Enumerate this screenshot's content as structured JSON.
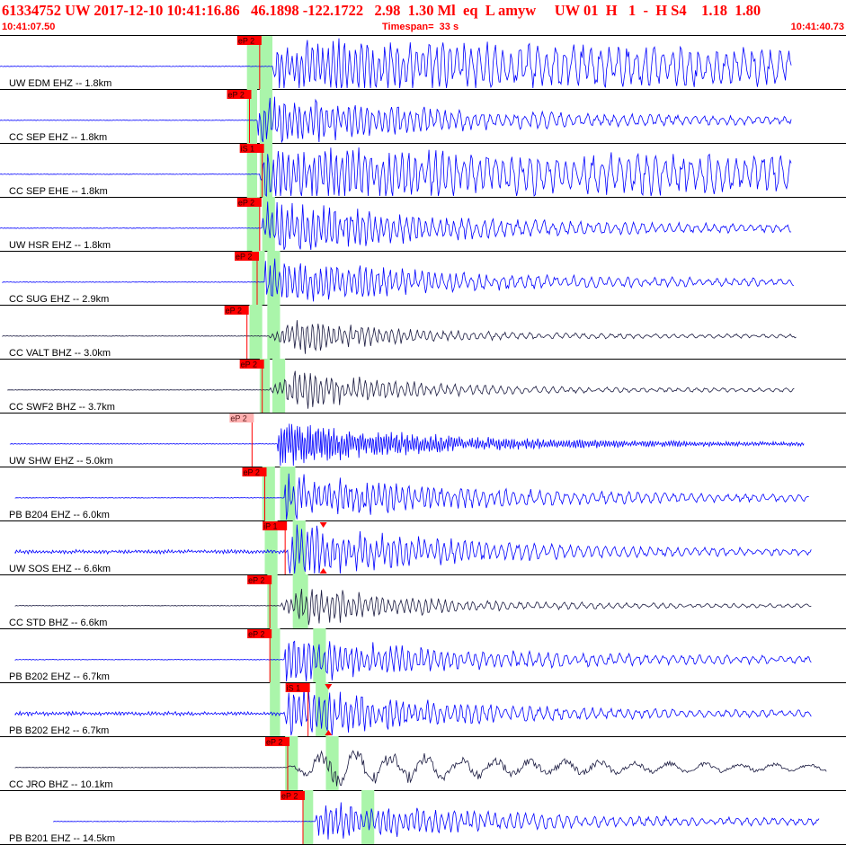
{
  "header": {
    "title": "61334752 UW 2017-12-10 10:41:16.86   46.1898 -122.1722   2.98  1.30 Ml  eq  L amyw     UW 01  H   1  -  H S4    1.18  1.80",
    "start_time": "10:41:07.50",
    "timespan": "Timespan=  33 s",
    "end_time": "10:41:40.73"
  },
  "colors": {
    "title": "#ff0000",
    "trace_blue": "#0000ff",
    "trace_dark": "#1a1a40",
    "pick_red": "#ff0000",
    "pick_flag_faded": "#ffb0b0",
    "window_green": "#aaf5aa",
    "separator": "#000000"
  },
  "chart_data": {
    "type": "seismogram",
    "time_range_s": [
      0,
      33.23
    ],
    "traces": [
      {
        "label": "UW EDM EHZ -- 1.8km",
        "color": "blue",
        "start_s": 0.0,
        "end_s": 31.1,
        "pick": {
          "label": "eP 2",
          "time_s": 10.2
        },
        "green_s": [
          [
            9.7,
            10.2
          ],
          [
            10.2,
            10.7
          ]
        ],
        "onset_s": 10.7,
        "amp": 0.95,
        "envelope": "sustained"
      },
      {
        "label": "CC SEP EHZ -- 1.8km",
        "color": "blue",
        "start_s": 0.0,
        "end_s": 31.1,
        "pick": {
          "label": "eP 2",
          "time_s": 9.8
        },
        "green_s": [
          [
            9.7,
            10.1
          ],
          [
            10.2,
            10.7
          ]
        ],
        "onset_s": 10.1,
        "amp": 0.9,
        "envelope": "decay"
      },
      {
        "label": "CC SEP EHE -- 1.8km",
        "color": "blue",
        "start_s": 0.0,
        "end_s": 31.1,
        "pick": {
          "label": "iS 1",
          "time_s": 10.3
        },
        "green_s": [
          [
            9.7,
            10.1
          ],
          [
            10.2,
            10.7
          ]
        ],
        "onset_s": 10.2,
        "amp": 0.95,
        "envelope": "sustained"
      },
      {
        "label": "UW HSR EHZ -- 1.8km",
        "color": "blue",
        "start_s": 0.0,
        "end_s": 31.1,
        "pick": {
          "label": "eP 2",
          "time_s": 10.2
        },
        "green_s": [
          [
            9.7,
            10.2
          ],
          [
            10.3,
            10.8
          ]
        ],
        "onset_s": 10.3,
        "amp": 0.9,
        "envelope": "decay"
      },
      {
        "label": "CC SUG EHZ -- 2.9km",
        "color": "blue",
        "start_s": 0.1,
        "end_s": 31.2,
        "pick": {
          "label": "eP 2",
          "time_s": 10.1
        },
        "green_s": [
          [
            9.9,
            10.4
          ],
          [
            10.5,
            11.0
          ]
        ],
        "onset_s": 10.4,
        "amp": 0.75,
        "envelope": "decay"
      },
      {
        "label": "CC VALT BHZ -- 3.0km",
        "color": "dark",
        "start_s": 0.1,
        "end_s": 31.3,
        "pick": {
          "label": "eP 2",
          "time_s": 9.7
        },
        "green_s": [
          [
            9.8,
            10.3
          ],
          [
            10.5,
            11.0
          ]
        ],
        "onset_s": 10.6,
        "amp": 0.55,
        "envelope": "bump"
      },
      {
        "label": "CC SWF2 BHZ -- 3.7km",
        "color": "dark",
        "start_s": 0.3,
        "end_s": 31.2,
        "pick": {
          "label": "eP 2",
          "time_s": 10.3
        },
        "green_s": [
          [
            10.2,
            10.6
          ],
          [
            10.7,
            11.2
          ]
        ],
        "onset_s": 10.6,
        "amp": 0.65,
        "envelope": "bump"
      },
      {
        "label": "UW SHW EHZ -- 5.0km",
        "color": "blue",
        "start_s": 0.4,
        "end_s": 31.6,
        "pick": {
          "label": "eP 2",
          "time_s": 9.9,
          "faded": true
        },
        "green_s": [],
        "onset_s": 10.9,
        "amp": 0.75,
        "envelope": "dense"
      },
      {
        "label": "PB B204 EHZ -- 6.0km",
        "color": "blue",
        "start_s": 0.6,
        "end_s": 31.8,
        "pick": {
          "label": "eP 2",
          "time_s": 10.4
        },
        "green_s": [
          [
            10.3,
            10.8
          ],
          [
            11.0,
            11.6
          ]
        ],
        "onset_s": 11.2,
        "amp": 0.75,
        "envelope": "decay"
      },
      {
        "label": "UW SOS EHZ -- 6.6km",
        "color": "blue",
        "start_s": 0.6,
        "end_s": 31.9,
        "pick": {
          "label": "iP 1",
          "time_s": 11.2
        },
        "green_s": [
          [
            10.4,
            10.9
          ],
          [
            11.5,
            12.0
          ]
        ],
        "onset_s": 11.3,
        "amp": 0.95,
        "envelope": "noisy",
        "marker_s": 12.7
      },
      {
        "label": "CC STD BHZ -- 6.6km",
        "color": "dark",
        "start_s": 0.6,
        "end_s": 31.9,
        "pick": {
          "label": "eP 2",
          "time_s": 10.6
        },
        "green_s": [
          [
            10.5,
            10.9
          ],
          [
            11.5,
            12.1
          ]
        ],
        "onset_s": 11.0,
        "amp": 0.7,
        "envelope": "bump"
      },
      {
        "label": "PB B202 EHZ -- 6.7km",
        "color": "blue",
        "start_s": 0.6,
        "end_s": 31.9,
        "pick": {
          "label": "eP 2",
          "time_s": 10.6
        },
        "green_s": [
          [
            10.6,
            11.0
          ],
          [
            12.3,
            12.8
          ]
        ],
        "onset_s": 11.2,
        "amp": 0.75,
        "envelope": "decay"
      },
      {
        "label": "PB B202 EH2 -- 6.7km",
        "color": "blue",
        "start_s": 0.6,
        "end_s": 31.9,
        "pick": {
          "label": "iS 1",
          "time_s": 12.1
        },
        "green_s": [
          [
            10.6,
            11.0
          ],
          [
            12.4,
            12.9
          ]
        ],
        "onset_s": 11.2,
        "amp": 0.85,
        "envelope": "noisy",
        "marker_s": 12.9
      },
      {
        "label": "CC JRO BHZ -- 10.1km",
        "color": "dark",
        "start_s": 0.6,
        "end_s": 32.5,
        "pick": {
          "label": "eP 2",
          "time_s": 11.3
        },
        "green_s": [
          [
            11.2,
            11.7
          ],
          [
            12.8,
            13.3
          ]
        ],
        "onset_s": 11.3,
        "amp": 0.6,
        "envelope": "longperiod"
      },
      {
        "label": "PB B201 EHZ -- 14.5km",
        "color": "blue",
        "start_s": 2.1,
        "end_s": 32.2,
        "pick": {
          "label": "eP 2",
          "time_s": 11.9
        },
        "green_s": [
          [
            11.9,
            12.3
          ],
          [
            14.2,
            14.7
          ]
        ],
        "onset_s": 12.4,
        "amp": 0.65,
        "envelope": "decay"
      }
    ]
  }
}
